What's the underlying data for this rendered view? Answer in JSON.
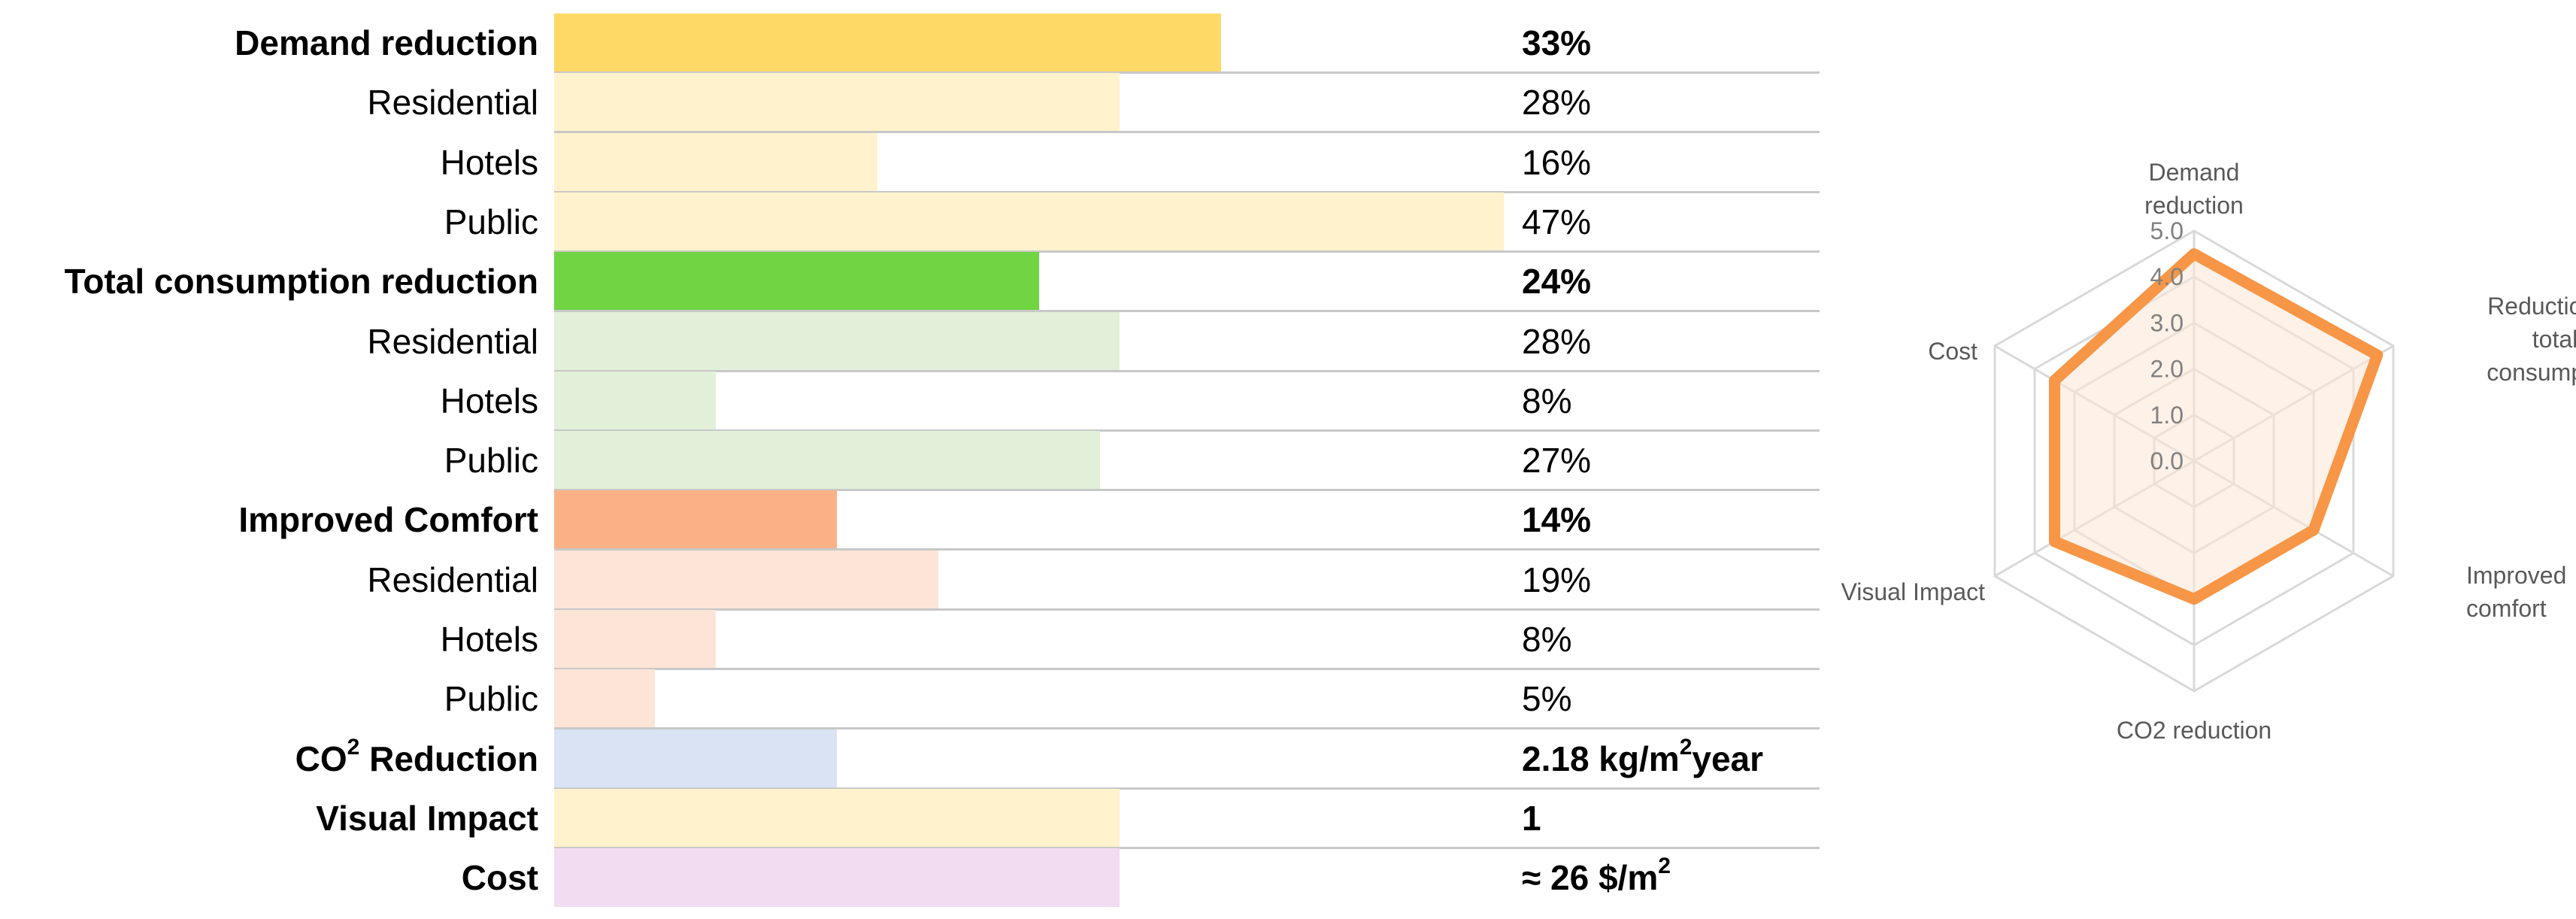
{
  "chart_data": [
    {
      "type": "bar",
      "orientation": "horizontal",
      "bar_scale_max_percent": 47,
      "rows": [
        {
          "label": "Demand reduction",
          "value": 33,
          "value_text": "33%",
          "bold": true,
          "color": "#FFD966"
        },
        {
          "label": "Residential",
          "value": 28,
          "value_text": "28%",
          "bold": false,
          "color": "#FFF2CC"
        },
        {
          "label": "Hotels",
          "value": 16,
          "value_text": "16%",
          "bold": false,
          "color": "#FFF2CC"
        },
        {
          "label": "Public",
          "value": 47,
          "value_text": "47%",
          "bold": false,
          "color": "#FFF2CC"
        },
        {
          "label": "Total consumption reduction",
          "value": 24,
          "value_text": "24%",
          "bold": true,
          "color": "#70D443"
        },
        {
          "label": "Residential",
          "value": 28,
          "value_text": "28%",
          "bold": false,
          "color": "#E2F0D9"
        },
        {
          "label": "Hotels",
          "value": 8,
          "value_text": "8%",
          "bold": false,
          "color": "#E2F0D9"
        },
        {
          "label": "Public",
          "value": 27,
          "value_text": "27%",
          "bold": false,
          "color": "#E2F0D9"
        },
        {
          "label": "Improved Comfort",
          "value": 14,
          "value_text": "14%",
          "bold": true,
          "color": "#FBB186"
        },
        {
          "label": "Residential",
          "value": 19,
          "value_text": "19%",
          "bold": false,
          "color": "#FCE4D6"
        },
        {
          "label": "Hotels",
          "value": 8,
          "value_text": "8%",
          "bold": false,
          "color": "#FCE4D6"
        },
        {
          "label": "Public",
          "value": 5,
          "value_text": "5%",
          "bold": false,
          "color": "#FCE4D6"
        },
        {
          "label": "CO",
          "label_sup": "2",
          "label_after": " Reduction",
          "value": 2.18,
          "value_text": "2.18 kg/m",
          "value_sup": "2",
          "value_after": "year",
          "bold": true,
          "color": "#DAE3F3"
        },
        {
          "label": "Visual Impact",
          "value": 1,
          "value_text": "1",
          "bold": true,
          "color": "#FFF2CC"
        },
        {
          "label": "Cost",
          "value": 26,
          "value_text": "≈ 26 $/m",
          "value_sup": "2",
          "value_after": "",
          "bold": true,
          "color": "#F2DCF2"
        }
      ]
    },
    {
      "type": "radar",
      "axes": [
        "Demand reduction",
        "Reduction of total consumption",
        "Improved comfort",
        "CO2 reduction",
        "Visual Impact",
        "Cost"
      ],
      "axis_label_lines": [
        [
          "Demand",
          "reduction"
        ],
        [
          "Reduction of",
          "total",
          "consumption"
        ],
        [
          "Improved",
          "comfort"
        ],
        [
          "CO2 reduction"
        ],
        [
          "Visual Impact"
        ],
        [
          "Cost"
        ]
      ],
      "ticks": [
        "0.0",
        "1.0",
        "2.0",
        "3.0",
        "4.0",
        "5.0"
      ],
      "range": [
        0,
        5
      ],
      "series": [
        {
          "values": [
            4.5,
            4.6,
            3.0,
            3.0,
            3.5,
            3.5
          ],
          "color": "#F79646",
          "fill": "#FBE5D6"
        }
      ],
      "grid_color": "#D9D9D9",
      "label_color": "#595959"
    }
  ]
}
